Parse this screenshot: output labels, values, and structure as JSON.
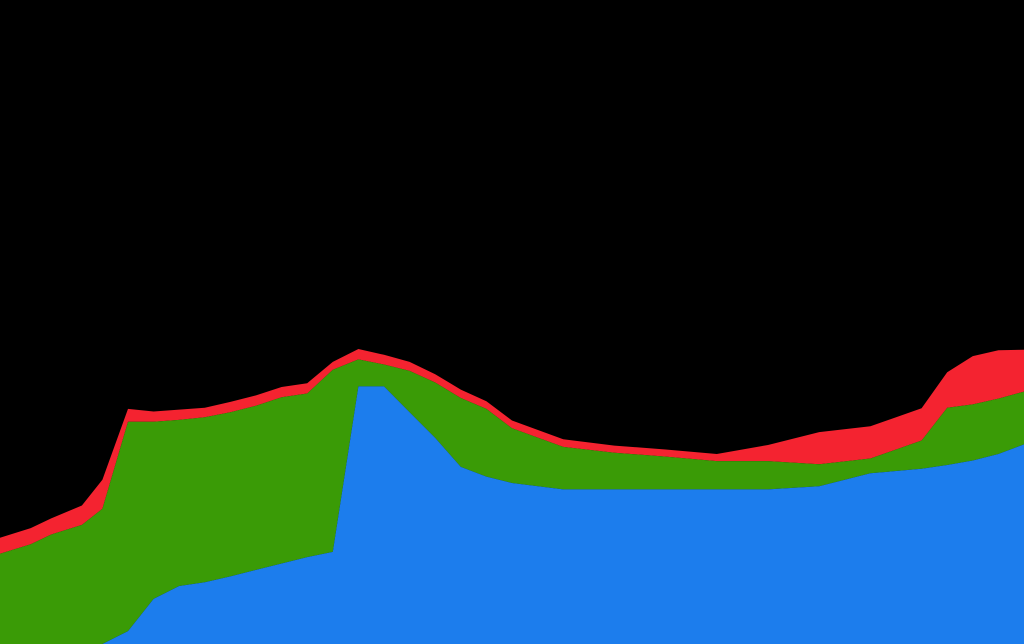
{
  "chart_data": {
    "type": "area",
    "stacked": true,
    "title": "",
    "xlabel": "",
    "ylabel": "",
    "grid": false,
    "legend": "none",
    "background": "#000000",
    "xlim": [
      0,
      100
    ],
    "ylim": [
      0,
      100
    ],
    "x": [
      0,
      3,
      5,
      8,
      10,
      12.5,
      15,
      17.5,
      20,
      22.5,
      25,
      27.5,
      30,
      32.5,
      35,
      37.5,
      40,
      42.5,
      45,
      47.5,
      50,
      55,
      60,
      65,
      70,
      75,
      80,
      85,
      90,
      92.5,
      95,
      97.5,
      100
    ],
    "series": [
      {
        "color": "#1c7ded",
        "values": [
          0,
          0,
          0,
          0,
          0,
          2,
          7,
          9,
          9.6,
          10.5,
          11.5,
          12.5,
          13.5,
          14.3,
          40,
          40,
          36,
          32,
          27.5,
          26,
          25,
          24,
          24,
          24,
          24,
          24,
          24.5,
          26.5,
          27.2,
          27.8,
          28.5,
          29.5,
          31
        ]
      },
      {
        "color": "#3a9b06",
        "values": [
          14,
          15.5,
          17,
          18.5,
          21,
          32.5,
          27.5,
          25.8,
          25.6,
          25.5,
          25.5,
          25.8,
          25.4,
          28.3,
          4.2,
          3.4,
          6.4,
          8.6,
          10.7,
          10.5,
          8.5,
          6.6,
          5.7,
          5.1,
          4.4,
          4.4,
          3.4,
          2.3,
          4.4,
          8.9,
          8.7,
          8.6,
          8.2
        ]
      },
      {
        "color": "#f42330",
        "values": [
          2.5,
          2.5,
          2.5,
          3,
          4.5,
          2,
          1.6,
          1.6,
          1.5,
          1.6,
          1.6,
          1.6,
          1.6,
          1.2,
          1.6,
          1.5,
          1.4,
          1.3,
          1.3,
          1.2,
          1.2,
          1.2,
          1.1,
          1.1,
          1.1,
          2.5,
          5,
          5,
          5,
          5.5,
          7.5,
          7.5,
          6.5
        ]
      }
    ]
  }
}
